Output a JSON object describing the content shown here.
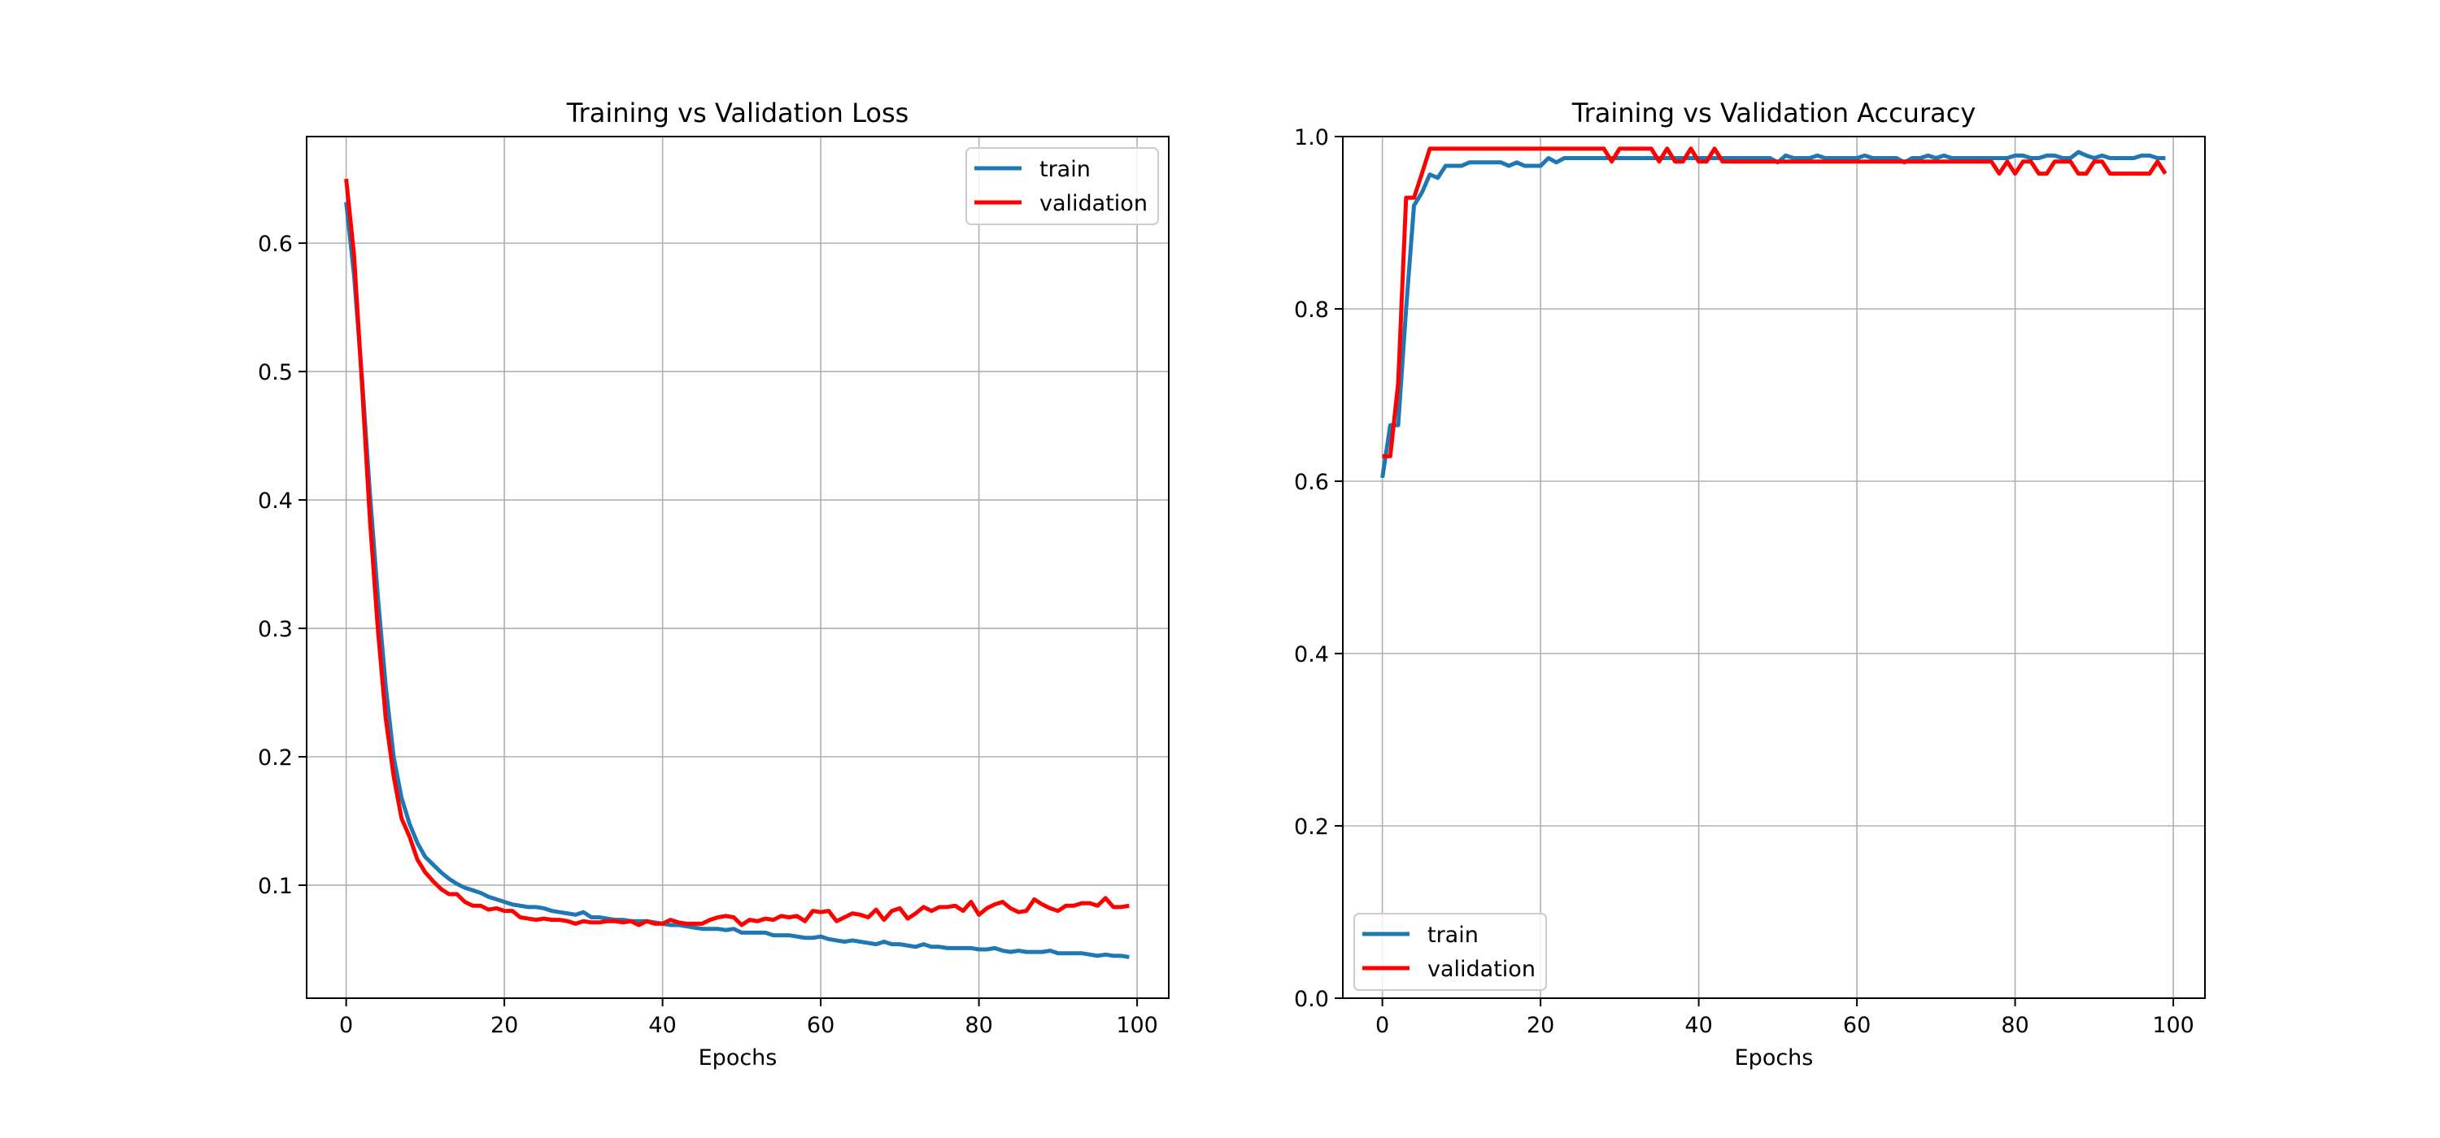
{
  "colors": {
    "train": "#1f77b4",
    "validation": "#ff0000",
    "grid": "#b0b0b0"
  },
  "chart_data": [
    {
      "type": "line",
      "title": "Training vs Validation Loss",
      "xlabel": "Epochs",
      "ylabel": "",
      "xlim": [
        -5,
        104
      ],
      "ylim": [
        0.012,
        0.683
      ],
      "xticks": [
        0,
        20,
        40,
        60,
        80,
        100
      ],
      "yticks": [
        0.1,
        0.2,
        0.3,
        0.4,
        0.5,
        0.6
      ],
      "xtick_labels": [
        "0",
        "20",
        "40",
        "60",
        "80",
        "100"
      ],
      "ytick_labels": [
        "0.1",
        "0.2",
        "0.3",
        "0.4",
        "0.5",
        "0.6"
      ],
      "grid": true,
      "legend": "upper right",
      "series": [
        {
          "name": "train",
          "color": "#1f77b4",
          "x": [
            0,
            1,
            2,
            3,
            4,
            5,
            6,
            7,
            8,
            9,
            10,
            11,
            12,
            13,
            14,
            15,
            16,
            17,
            18,
            19,
            20,
            21,
            22,
            23,
            24,
            25,
            26,
            27,
            28,
            29,
            30,
            31,
            32,
            33,
            34,
            35,
            36,
            37,
            38,
            39,
            40,
            41,
            42,
            43,
            44,
            45,
            46,
            47,
            48,
            49,
            50,
            51,
            52,
            53,
            54,
            55,
            56,
            57,
            58,
            59,
            60,
            61,
            62,
            63,
            64,
            65,
            66,
            67,
            68,
            69,
            70,
            71,
            72,
            73,
            74,
            75,
            76,
            77,
            78,
            79,
            80,
            81,
            82,
            83,
            84,
            85,
            86,
            87,
            88,
            89,
            90,
            91,
            92,
            93,
            94,
            95,
            96,
            97,
            98,
            99
          ],
          "values": [
            0.632,
            0.575,
            0.495,
            0.405,
            0.325,
            0.255,
            0.2,
            0.168,
            0.148,
            0.133,
            0.122,
            0.116,
            0.11,
            0.105,
            0.101,
            0.098,
            0.096,
            0.094,
            0.091,
            0.089,
            0.087,
            0.085,
            0.084,
            0.083,
            0.083,
            0.082,
            0.08,
            0.079,
            0.078,
            0.077,
            0.079,
            0.075,
            0.075,
            0.074,
            0.073,
            0.073,
            0.072,
            0.072,
            0.072,
            0.071,
            0.07,
            0.069,
            0.069,
            0.068,
            0.067,
            0.066,
            0.066,
            0.066,
            0.065,
            0.066,
            0.063,
            0.063,
            0.063,
            0.063,
            0.061,
            0.061,
            0.061,
            0.06,
            0.059,
            0.059,
            0.06,
            0.058,
            0.057,
            0.056,
            0.057,
            0.056,
            0.055,
            0.054,
            0.056,
            0.054,
            0.054,
            0.053,
            0.052,
            0.054,
            0.052,
            0.052,
            0.051,
            0.051,
            0.051,
            0.051,
            0.05,
            0.05,
            0.051,
            0.049,
            0.048,
            0.049,
            0.048,
            0.048,
            0.048,
            0.049,
            0.047,
            0.047,
            0.047,
            0.047,
            0.046,
            0.045,
            0.046,
            0.045,
            0.045,
            0.044
          ]
        },
        {
          "name": "validation",
          "color": "#ff0000",
          "x": [
            0,
            1,
            2,
            3,
            4,
            5,
            6,
            7,
            8,
            9,
            10,
            11,
            12,
            13,
            14,
            15,
            16,
            17,
            18,
            19,
            20,
            21,
            22,
            23,
            24,
            25,
            26,
            27,
            28,
            29,
            30,
            31,
            32,
            33,
            34,
            35,
            36,
            37,
            38,
            39,
            40,
            41,
            42,
            43,
            44,
            45,
            46,
            47,
            48,
            49,
            50,
            51,
            52,
            53,
            54,
            55,
            56,
            57,
            58,
            59,
            60,
            61,
            62,
            63,
            64,
            65,
            66,
            67,
            68,
            69,
            70,
            71,
            72,
            73,
            74,
            75,
            76,
            77,
            78,
            79,
            80,
            81,
            82,
            83,
            84,
            85,
            86,
            87,
            88,
            89,
            90,
            91,
            92,
            93,
            94,
            95,
            96,
            97,
            98,
            99
          ],
          "values": [
            0.65,
            0.59,
            0.49,
            0.385,
            0.3,
            0.23,
            0.185,
            0.152,
            0.138,
            0.12,
            0.11,
            0.103,
            0.097,
            0.093,
            0.093,
            0.087,
            0.084,
            0.084,
            0.081,
            0.082,
            0.08,
            0.08,
            0.075,
            0.074,
            0.073,
            0.074,
            0.073,
            0.073,
            0.072,
            0.07,
            0.072,
            0.071,
            0.071,
            0.072,
            0.072,
            0.071,
            0.072,
            0.069,
            0.072,
            0.07,
            0.07,
            0.073,
            0.071,
            0.07,
            0.07,
            0.07,
            0.073,
            0.075,
            0.076,
            0.075,
            0.069,
            0.073,
            0.072,
            0.074,
            0.073,
            0.076,
            0.075,
            0.076,
            0.072,
            0.08,
            0.079,
            0.08,
            0.072,
            0.075,
            0.078,
            0.077,
            0.075,
            0.081,
            0.073,
            0.08,
            0.082,
            0.074,
            0.078,
            0.083,
            0.08,
            0.083,
            0.083,
            0.084,
            0.08,
            0.087,
            0.077,
            0.082,
            0.085,
            0.087,
            0.082,
            0.079,
            0.08,
            0.089,
            0.085,
            0.082,
            0.08,
            0.084,
            0.084,
            0.086,
            0.086,
            0.084,
            0.09,
            0.083,
            0.083,
            0.084
          ]
        }
      ]
    },
    {
      "type": "line",
      "title": "Training vs Validation Accuracy",
      "xlabel": "Epochs",
      "ylabel": "",
      "xlim": [
        -5,
        104
      ],
      "ylim": [
        0.0,
        1.0
      ],
      "xticks": [
        0,
        20,
        40,
        60,
        80,
        100
      ],
      "yticks": [
        0.0,
        0.2,
        0.4,
        0.6,
        0.8,
        1.0
      ],
      "xtick_labels": [
        "0",
        "20",
        "40",
        "60",
        "80",
        "100"
      ],
      "ytick_labels": [
        "0.0",
        "0.2",
        "0.4",
        "0.6",
        "0.8",
        "1.0"
      ],
      "grid": true,
      "legend": "lower left",
      "series": [
        {
          "name": "train",
          "color": "#1f77b4",
          "x": [
            0,
            1,
            2,
            3,
            4,
            5,
            6,
            7,
            8,
            9,
            10,
            11,
            12,
            13,
            14,
            15,
            16,
            17,
            18,
            19,
            20,
            21,
            22,
            23,
            24,
            25,
            26,
            27,
            28,
            29,
            30,
            31,
            32,
            33,
            34,
            35,
            36,
            37,
            38,
            39,
            40,
            41,
            42,
            43,
            44,
            45,
            46,
            47,
            48,
            49,
            50,
            51,
            52,
            53,
            54,
            55,
            56,
            57,
            58,
            59,
            60,
            61,
            62,
            63,
            64,
            65,
            66,
            67,
            68,
            69,
            70,
            71,
            72,
            73,
            74,
            75,
            76,
            77,
            78,
            79,
            80,
            81,
            82,
            83,
            84,
            85,
            86,
            87,
            88,
            89,
            90,
            91,
            92,
            93,
            94,
            95,
            96,
            97,
            98,
            99
          ],
          "values": [
            0.604,
            0.665,
            0.665,
            0.8,
            0.92,
            0.935,
            0.956,
            0.952,
            0.966,
            0.966,
            0.966,
            0.97,
            0.97,
            0.97,
            0.97,
            0.97,
            0.966,
            0.97,
            0.966,
            0.966,
            0.966,
            0.975,
            0.97,
            0.975,
            0.975,
            0.975,
            0.975,
            0.975,
            0.975,
            0.975,
            0.975,
            0.975,
            0.975,
            0.975,
            0.975,
            0.975,
            0.975,
            0.975,
            0.975,
            0.975,
            0.975,
            0.975,
            0.975,
            0.975,
            0.975,
            0.975,
            0.975,
            0.975,
            0.975,
            0.975,
            0.97,
            0.978,
            0.975,
            0.975,
            0.975,
            0.978,
            0.975,
            0.975,
            0.975,
            0.975,
            0.975,
            0.978,
            0.975,
            0.975,
            0.975,
            0.975,
            0.97,
            0.975,
            0.975,
            0.978,
            0.975,
            0.978,
            0.975,
            0.975,
            0.975,
            0.975,
            0.975,
            0.975,
            0.975,
            0.975,
            0.978,
            0.978,
            0.975,
            0.975,
            0.978,
            0.978,
            0.975,
            0.975,
            0.982,
            0.978,
            0.975,
            0.978,
            0.975,
            0.975,
            0.975,
            0.975,
            0.978,
            0.978,
            0.975,
            0.975
          ]
        },
        {
          "name": "validation",
          "color": "#ff0000",
          "x": [
            0,
            1,
            2,
            3,
            4,
            5,
            6,
            7,
            8,
            9,
            10,
            11,
            12,
            13,
            14,
            15,
            16,
            17,
            18,
            19,
            20,
            21,
            22,
            23,
            24,
            25,
            26,
            27,
            28,
            29,
            30,
            31,
            32,
            33,
            34,
            35,
            36,
            37,
            38,
            39,
            40,
            41,
            42,
            43,
            44,
            45,
            46,
            47,
            48,
            49,
            50,
            51,
            52,
            53,
            54,
            55,
            56,
            57,
            58,
            59,
            60,
            61,
            62,
            63,
            64,
            65,
            66,
            67,
            68,
            69,
            70,
            71,
            72,
            73,
            74,
            75,
            76,
            77,
            78,
            79,
            80,
            81,
            82,
            83,
            84,
            85,
            86,
            87,
            88,
            89,
            90,
            91,
            92,
            93,
            94,
            95,
            96,
            97,
            98,
            99
          ],
          "values": [
            0.629,
            0.629,
            0.714,
            0.929,
            0.929,
            0.957,
            0.986,
            0.986,
            0.986,
            0.986,
            0.986,
            0.986,
            0.986,
            0.986,
            0.986,
            0.986,
            0.986,
            0.986,
            0.986,
            0.986,
            0.986,
            0.986,
            0.986,
            0.986,
            0.986,
            0.986,
            0.986,
            0.986,
            0.986,
            0.971,
            0.986,
            0.986,
            0.986,
            0.986,
            0.986,
            0.971,
            0.986,
            0.971,
            0.971,
            0.986,
            0.971,
            0.971,
            0.986,
            0.971,
            0.971,
            0.971,
            0.971,
            0.971,
            0.971,
            0.971,
            0.971,
            0.971,
            0.971,
            0.971,
            0.971,
            0.971,
            0.971,
            0.971,
            0.971,
            0.971,
            0.971,
            0.971,
            0.971,
            0.971,
            0.971,
            0.971,
            0.971,
            0.971,
            0.971,
            0.971,
            0.971,
            0.971,
            0.971,
            0.971,
            0.971,
            0.971,
            0.971,
            0.971,
            0.957,
            0.971,
            0.957,
            0.971,
            0.971,
            0.957,
            0.957,
            0.971,
            0.971,
            0.971,
            0.957,
            0.957,
            0.971,
            0.971,
            0.957,
            0.957,
            0.957,
            0.957,
            0.957,
            0.957,
            0.971,
            0.957
          ]
        }
      ]
    }
  ]
}
